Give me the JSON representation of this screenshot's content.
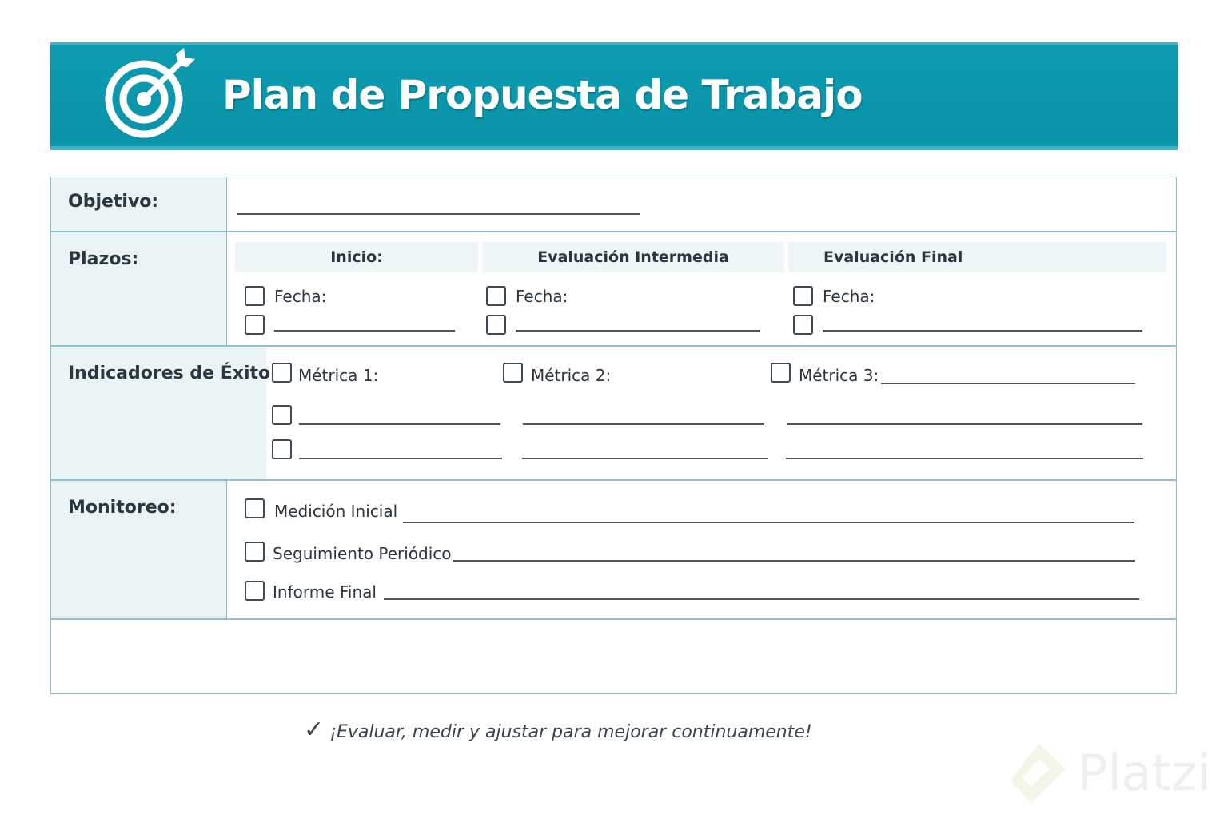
{
  "header": {
    "title": "Plan de Propuesta de Trabajo",
    "icon": "target-arrow-icon",
    "color": "#0c97ad"
  },
  "objetivo": {
    "label": "Objetivo:"
  },
  "plazos": {
    "label": "Plazos:",
    "columns": [
      {
        "title": "Inicio:",
        "fecha": "Fecha:"
      },
      {
        "title": "Evaluación Intermedia",
        "fecha": "Fecha:"
      },
      {
        "title": "Evaluación Final",
        "fecha": "Fecha:"
      }
    ]
  },
  "indicadores": {
    "label": "Indicadores de Éxito:",
    "metrics": [
      "Métrica 1:",
      "Métrica 2:",
      "Métrica 3:"
    ]
  },
  "monitoreo": {
    "label": "Monitoreo:",
    "items": [
      "Medición Inicial",
      "Seguimiento Periódico",
      "Informe Final"
    ]
  },
  "footer": {
    "icon": "checkmark-icon",
    "text": "¡Evaluar, medir y ajustar para mejorar continuamente!"
  },
  "watermark": {
    "text": "Platzi"
  }
}
